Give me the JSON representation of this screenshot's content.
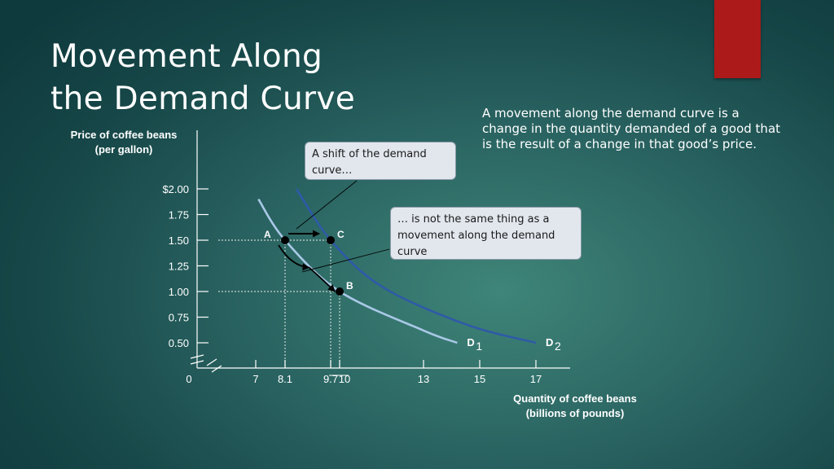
{
  "slide": {
    "title_line1": "Movement Along",
    "title_line2": "the Demand Curve",
    "description": "A movement along the demand curve is a change in the quantity demanded of a good that is the result of a change in that good’s price.",
    "accent_color": "#ac1a19"
  },
  "callouts": {
    "shift": "A shift of the demand curve…",
    "movement": "… is not the same thing as a movement along the demand curve"
  },
  "chart_data": {
    "type": "line",
    "ylabel_line1": "Price of coffee beans",
    "ylabel_line2": "(per gallon)",
    "xlabel_line1": "Quantity of coffee beans",
    "xlabel_line2": "(billions of pounds)",
    "origin_label": "0",
    "y_ticks": [
      {
        "value": 2.0,
        "label": "$2.00"
      },
      {
        "value": 1.75,
        "label": "1.75"
      },
      {
        "value": 1.5,
        "label": "1.50"
      },
      {
        "value": 1.25,
        "label": "1.25"
      },
      {
        "value": 1.0,
        "label": "1.00"
      },
      {
        "value": 0.75,
        "label": "0.75"
      },
      {
        "value": 0.5,
        "label": "0.50"
      }
    ],
    "x_ticks": [
      {
        "value": 7,
        "label": "7"
      },
      {
        "value": 8.1,
        "label": "8.1"
      },
      {
        "value": 9.7,
        "label": "9.7"
      },
      {
        "value": 10,
        "label": "10"
      },
      {
        "value": 13,
        "label": "13"
      },
      {
        "value": 15,
        "label": "15"
      },
      {
        "value": 17,
        "label": "17"
      }
    ],
    "series": [
      {
        "name": "D",
        "subscript": "1",
        "color": "#a9c8e6",
        "points": [
          [
            7.1,
            1.9
          ],
          [
            8.1,
            1.5
          ],
          [
            10,
            1.0
          ],
          [
            13,
            0.62
          ],
          [
            14.2,
            0.5
          ]
        ]
      },
      {
        "name": "D",
        "subscript": "2",
        "color": "#2f5aa8",
        "points": [
          [
            8.5,
            2.0
          ],
          [
            9.7,
            1.5
          ],
          [
            11.5,
            1.05
          ],
          [
            14.5,
            0.68
          ],
          [
            17,
            0.5
          ]
        ]
      }
    ],
    "points": [
      {
        "label": "A",
        "x": 8.1,
        "y": 1.5
      },
      {
        "label": "C",
        "x": 9.7,
        "y": 1.5
      },
      {
        "label": "B",
        "x": 10,
        "y": 1.0
      }
    ],
    "colors": {
      "axis": "#ffffff",
      "guide": "#c8d4d0",
      "arrow": "#000000"
    }
  }
}
